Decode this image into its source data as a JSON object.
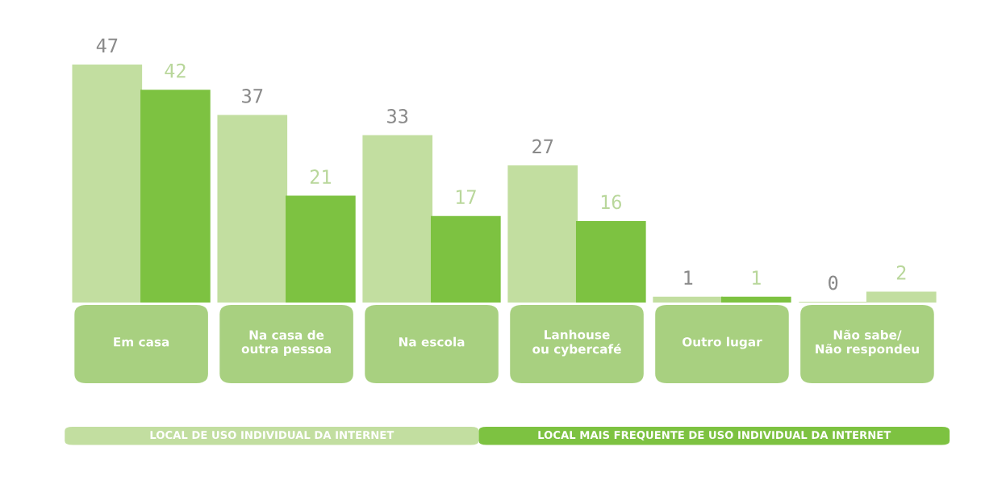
{
  "chart_data": {
    "type": "bar",
    "categories": [
      "Em casa",
      "Na casa de\noutra pessoa",
      "Na escola",
      "Lanhouse\nou cybercafé",
      "Outro lugar",
      "Não sabe/\nNão respondeu"
    ],
    "series": [
      {
        "name": "LOCAL DE USO INDIVIDUAL DA INTERNET",
        "color": "#c2dea0",
        "values": [
          47,
          37,
          33,
          27,
          1,
          0
        ]
      },
      {
        "name": "LOCAL MAIS FREQUENTE DE USO INDIVIDUAL DA INTERNET",
        "color": "#7dc241",
        "colors": [
          "#7dc241",
          "#7dc241",
          "#7dc241",
          "#7dc241",
          "#7dc241",
          "#c2dea0"
        ],
        "values": [
          42,
          21,
          17,
          16,
          1,
          2
        ]
      }
    ],
    "data_labels": true,
    "legend": "bottom"
  }
}
